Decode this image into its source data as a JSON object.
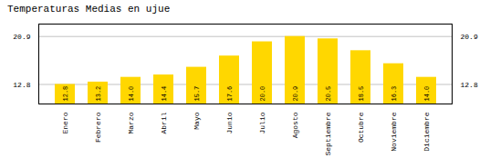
{
  "chart_data": {
    "type": "bar",
    "title": "Temperaturas Medias en ujue",
    "categories": [
      "Enero",
      "Febrero",
      "Marzo",
      "Abril",
      "Mayo",
      "Junio",
      "Julio",
      "Agosto",
      "Septiembre",
      "Octubre",
      "Noviembre",
      "Diciembre"
    ],
    "values": [
      12.8,
      13.2,
      14.0,
      14.4,
      15.7,
      17.6,
      20.0,
      20.9,
      20.5,
      18.5,
      16.3,
      14.0
    ],
    "value_labels": [
      "12.8",
      "13.2",
      "14.0",
      "14.4",
      "15.7",
      "17.6",
      "20.0",
      "20.9",
      "20.5",
      "18.5",
      "16.3",
      "14.0"
    ],
    "color": "#FFD700",
    "ylim": [
      9.5,
      23.0
    ],
    "yticks": [
      12.8,
      20.9
    ],
    "grid": true,
    "data_labels": true
  }
}
